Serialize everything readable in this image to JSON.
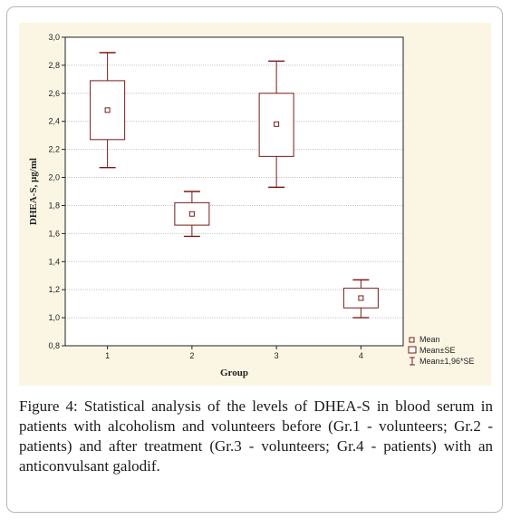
{
  "chart_data": {
    "type": "box",
    "xlabel": "Group",
    "ylabel": "DHEA-S, µg/ml",
    "ylim": [
      0.8,
      3.0
    ],
    "ytick_step": 0.2,
    "categories": [
      "1",
      "2",
      "3",
      "4"
    ],
    "boxes": [
      {
        "category": "1",
        "mean": 2.48,
        "se_low": 2.27,
        "se_high": 2.69,
        "ci_low": 2.07,
        "ci_high": 2.89
      },
      {
        "category": "2",
        "mean": 1.74,
        "se_low": 1.66,
        "se_high": 1.82,
        "ci_low": 1.58,
        "ci_high": 1.9
      },
      {
        "category": "3",
        "mean": 2.38,
        "se_low": 2.15,
        "se_high": 2.6,
        "ci_low": 1.93,
        "ci_high": 2.83
      },
      {
        "category": "4",
        "mean": 1.14,
        "se_low": 1.07,
        "se_high": 1.21,
        "ci_low": 1.0,
        "ci_high": 1.27
      }
    ],
    "legend": [
      "Mean",
      "Mean±SE",
      "Mean±1,96*SE"
    ],
    "legend_position": "bottom-right",
    "grid": true,
    "colors": {
      "box": "#7a1a1a",
      "grid": "#c8c8c8",
      "background": "#fbf6e4"
    }
  },
  "caption": "Figure 4: Statistical analysis of the levels of DHEA-S in blood serum in patients with alcoholism and volunteers before (Gr.1 - volunteers; Gr.2 - patients) and after treatment (Gr.3 - volunteers; Gr.4 - patients) with an anticonvulsant galodif."
}
